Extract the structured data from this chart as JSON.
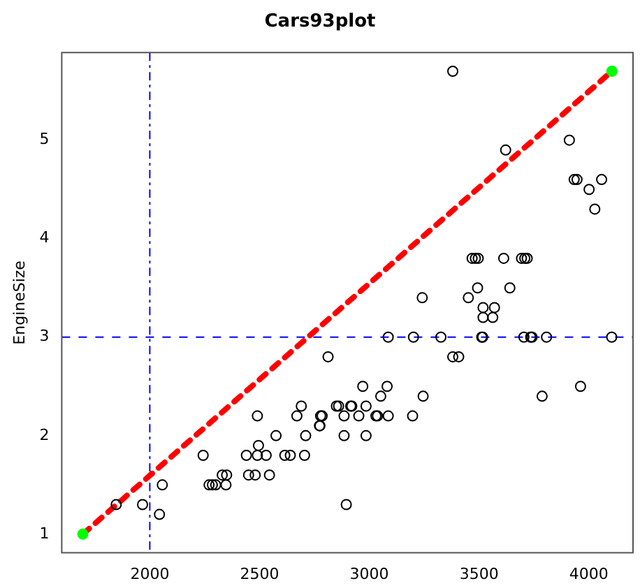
{
  "chart_data": {
    "type": "scatter",
    "title": "Cars93plot",
    "ylabel": "EngineSize",
    "xlim": [
      1599,
      4201
    ],
    "xticks": [
      2000,
      2500,
      3000,
      3500,
      4000
    ],
    "ylim": [
      0.81,
      5.89
    ],
    "yticks": [
      1,
      2,
      3,
      4,
      5
    ],
    "grid": false,
    "legend": false,
    "marker": "circle",
    "ref_lines": [
      {
        "axis": "x",
        "value": 2000,
        "color": "#0000ff",
        "line_style": "dashdot"
      },
      {
        "axis": "y",
        "value": 3,
        "color": "#0000ff",
        "line_style": "dashed"
      }
    ],
    "series": [
      {
        "color": "#000000",
        "x": [
          1847,
          1967,
          2044,
          2057,
          2243,
          2270,
          2285,
          2300,
          2330,
          2350,
          2347,
          2440,
          2490,
          2530,
          2450,
          2480,
          2545,
          2490,
          2495,
          2575,
          2615,
          2640,
          2670,
          2690,
          2705,
          2710,
          2775,
          2785,
          2812,
          2778,
          2773,
          2850,
          2860,
          2885,
          2885,
          2915,
          2920,
          2895,
          2952,
          2970,
          2985,
          2985,
          3030,
          3037,
          3052,
          3081,
          3086,
          3086,
          3197,
          3201,
          3245,
          3326,
          3380,
          3407,
          3512,
          3516,
          3518,
          3562,
          3518,
          3570,
          3704,
          3735,
          3741,
          3807,
          3787,
          3962,
          4104,
          3380,
          3911,
          3621,
          3933,
          3946,
          4058,
          4001,
          4027,
          3468,
          3483,
          3496,
          3612,
          3693,
          3708,
          3719,
          3241,
          3451,
          3493,
          3640
        ],
        "values": [
          1.3,
          1.3,
          1.2,
          1.5,
          1.8,
          1.5,
          1.5,
          1.5,
          1.6,
          1.6,
          1.5,
          1.8,
          1.8,
          1.8,
          1.6,
          1.6,
          1.6,
          2.2,
          1.9,
          2.0,
          1.8,
          1.8,
          2.2,
          2.3,
          1.8,
          2.0,
          2.1,
          2.2,
          2.8,
          2.2,
          2.1,
          2.3,
          2.3,
          2.2,
          2.0,
          2.3,
          2.3,
          1.3,
          2.2,
          2.5,
          2.3,
          2.0,
          2.2,
          2.2,
          2.4,
          2.5,
          2.2,
          3.0,
          2.2,
          3.0,
          2.4,
          3.0,
          2.8,
          2.8,
          3.0,
          3.0,
          3.2,
          3.2,
          3.3,
          3.3,
          3.0,
          3.0,
          3.0,
          3.0,
          2.4,
          2.5,
          3.0,
          5.7,
          5.0,
          4.9,
          4.6,
          4.6,
          4.6,
          4.5,
          4.3,
          3.8,
          3.8,
          3.8,
          3.8,
          3.8,
          3.8,
          3.8,
          3.4,
          3.4,
          3.5,
          3.5
        ]
      },
      {
        "color": "#00ff00",
        "x": [
          1695,
          4105
        ],
        "values": [
          1.0,
          5.7
        ]
      },
      {
        "type": "line",
        "color": "#ff0000",
        "line_style": "dashed",
        "marker": "none",
        "x": [
          1695,
          4105
        ],
        "values": [
          1.0,
          5.7
        ]
      }
    ]
  }
}
